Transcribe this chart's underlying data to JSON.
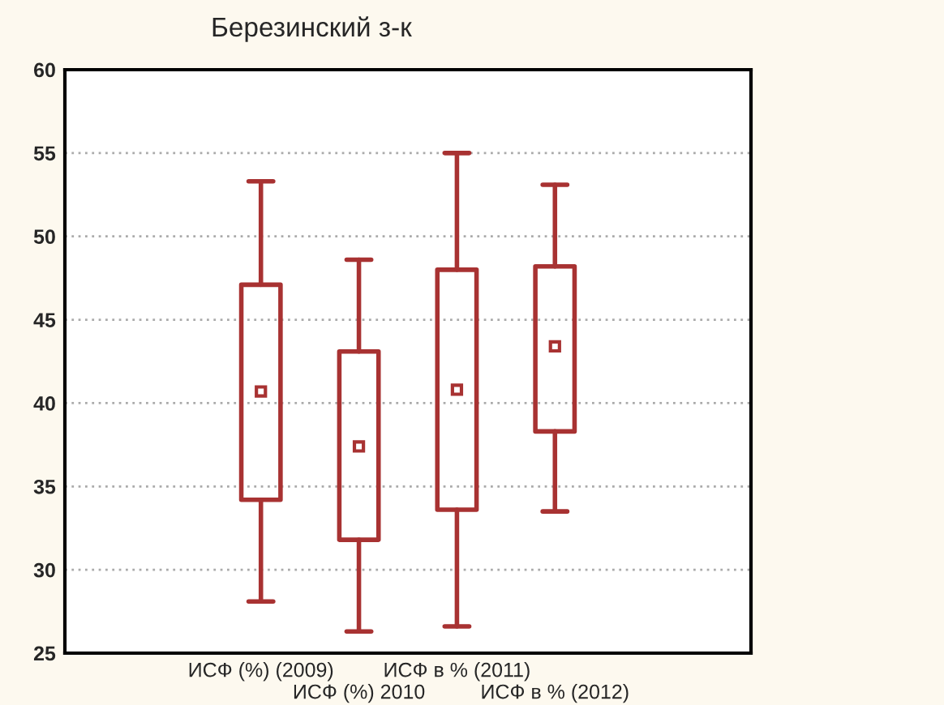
{
  "chart_data": {
    "type": "box",
    "title": "Березинский з-к",
    "categories": [
      null,
      "ИСФ (%) (2009)",
      "ИСФ (%) 2010",
      "ИСФ в % (2011)",
      "ИСФ в % (2012)"
    ],
    "boxes": [
      null,
      {
        "low": 28.1,
        "q1": 34.2,
        "median": 40.7,
        "q3": 47.1,
        "high": 53.3
      },
      {
        "low": 26.3,
        "q1": 31.8,
        "median": 37.4,
        "q3": 43.1,
        "high": 48.6
      },
      {
        "low": 26.6,
        "q1": 33.6,
        "median": 40.8,
        "q3": 48.0,
        "high": 55.0
      },
      {
        "low": 33.5,
        "q1": 38.3,
        "median": 43.4,
        "q3": 48.2,
        "high": 53.1
      }
    ],
    "color": "#a83232",
    "ylim": [
      25,
      60
    ],
    "yticks": [
      25,
      30,
      35,
      40,
      45,
      50,
      55,
      60
    ],
    "grid": "y",
    "marker": "square"
  }
}
